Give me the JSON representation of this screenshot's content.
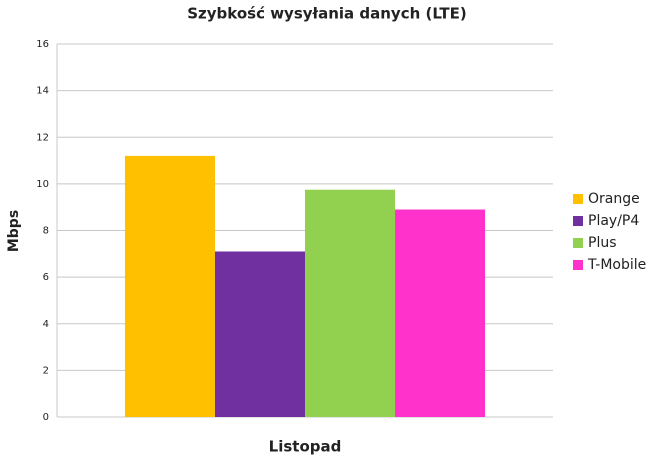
{
  "chart_data": {
    "type": "bar",
    "title": "Szybkość wysyłania danych (LTE)",
    "y_label": "Mbps",
    "categories": [
      "Listopad"
    ],
    "series": [
      {
        "name": "Orange",
        "color": "#FFC000",
        "values": [
          11.2
        ]
      },
      {
        "name": "Play/P4",
        "color": "#7030A0",
        "values": [
          7.1
        ]
      },
      {
        "name": "Plus",
        "color": "#92D050",
        "values": [
          9.75
        ]
      },
      {
        "name": "T-Mobile",
        "color": "#FF33CC",
        "values": [
          8.9
        ]
      }
    ],
    "ylim": [
      0,
      16
    ],
    "yticks": [
      0,
      2,
      4,
      6,
      8,
      10,
      12,
      14,
      16
    ],
    "grid": true,
    "legend": "right"
  }
}
